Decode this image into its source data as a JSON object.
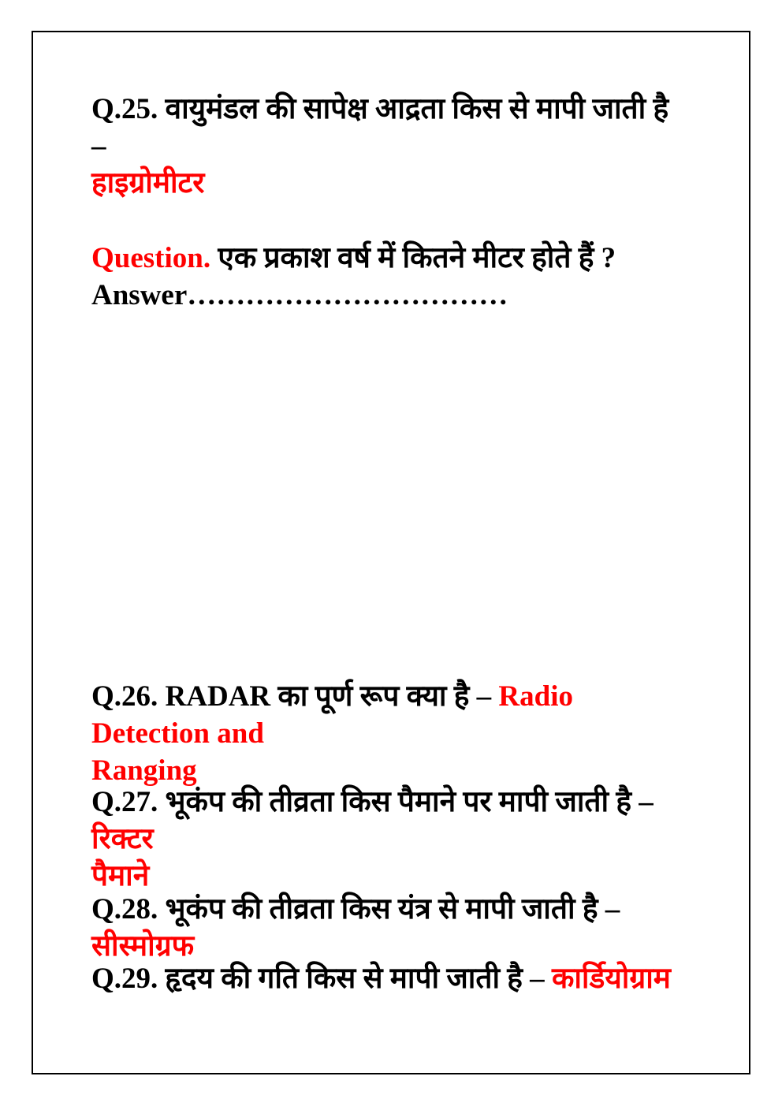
{
  "page": {
    "background": "#ffffff",
    "text_color": "#000000",
    "accent_color": "#ff0000",
    "border_color": "#000000"
  },
  "content": {
    "q25": {
      "question": "Q.25. वायुमंडल की सापेक्ष आद्रता किस से मापी जाती है –",
      "answer": "हाइग्रोमीटर"
    },
    "fill_question": {
      "label": "Question.",
      "text": "एक प्रकाश वर्ष में कितने मीटर होते हैं ?",
      "answer_blank": "Answer……………………………"
    },
    "q26": {
      "question": "Q.26. RADAR का पूर्ण रूप क्या है –",
      "answer_line1": "Radio Detection and",
      "answer_line2": "Ranging"
    },
    "q27": {
      "question": "Q.27. भूकंप की तीव्रता किस पैमाने पर मापी जाती है –",
      "answer_line1": "रिक्टर",
      "answer_line2": "पैमाने"
    },
    "q28": {
      "question": "Q.28. भूकंप की तीव्रता किस यंत्र से मापी जाती है –",
      "answer": "सीस्मोग्रफ"
    },
    "q29": {
      "question": "Q.29. हृदय की गति किस से मापी जाती है –",
      "answer": "कार्डियोग्राम"
    }
  }
}
